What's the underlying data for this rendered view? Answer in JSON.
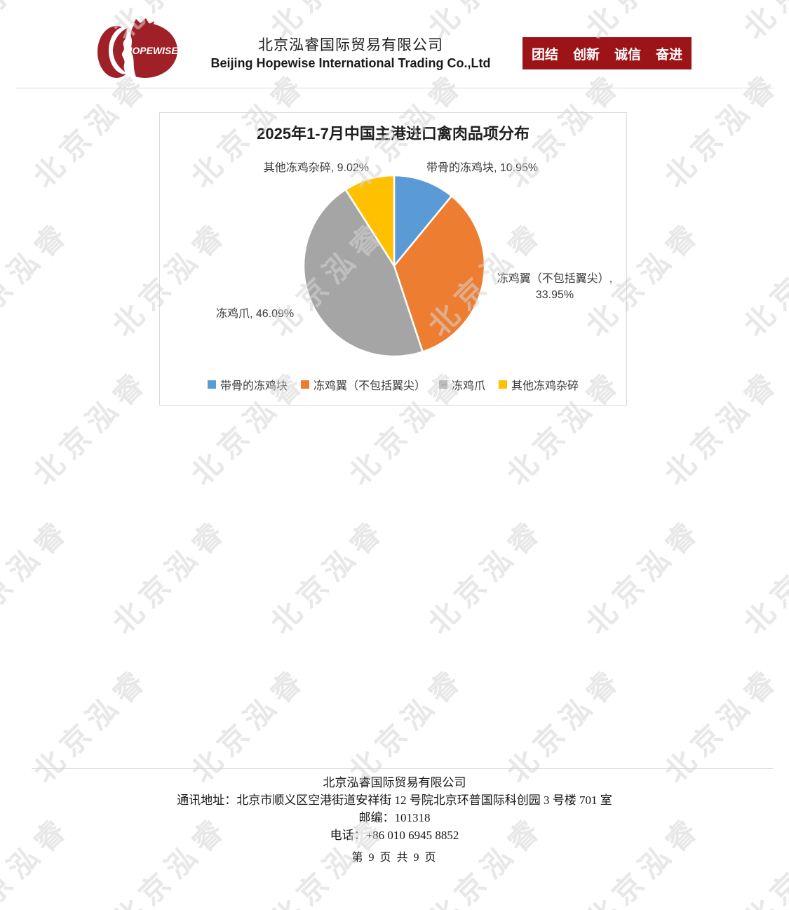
{
  "watermark": {
    "text": "北京泓睿",
    "color": "#d6d6d6"
  },
  "header": {
    "logo_text": "HOPEWISE",
    "logo_color": "#9f2026",
    "company_cn": "北京泓睿国际贸易有限公司",
    "company_en": "Beijing Hopewise International Trading Co.,Ltd",
    "banner": {
      "items": [
        "团结",
        "创新",
        "诚信",
        "奋进"
      ],
      "bg_color": "#9c1418",
      "text_color": "#ffffff"
    }
  },
  "chart_data": {
    "type": "pie",
    "title": "2025年1-7月中国主港进口禽肉品项分布",
    "legend_position": "bottom",
    "start_angle_deg": 0,
    "direction": "clockwise",
    "series": [
      {
        "label": "带骨的冻鸡块",
        "value": 10.95,
        "color": "#5B9BD5"
      },
      {
        "label": "冻鸡翼（不包括翼尖）",
        "value": 33.95,
        "color": "#ED7D31"
      },
      {
        "label": "冻鸡爪",
        "value": 46.09,
        "color": "#A5A5A5"
      },
      {
        "label": "其他冻鸡杂碎",
        "value": 9.02,
        "color": "#FFC000"
      }
    ],
    "labels": {
      "other": "其他冻鸡杂碎, 9.02%",
      "bone_in": "带骨的冻鸡块, 10.95%",
      "wings_line1": "冻鸡翼（不包括翼尖）,",
      "wings_line2": "33.95%",
      "claws": "冻鸡爪, 46.09%"
    }
  },
  "footer": {
    "company": "北京泓睿国际贸易有限公司",
    "address": "通讯地址：北京市顺义区空港街道安祥街 12 号院北京环普国际科创园 3 号楼 701 室",
    "postal": "邮编：101318",
    "phone": "电话：+86 010 6945 8852",
    "page": "第 9 页 共 9 页"
  }
}
